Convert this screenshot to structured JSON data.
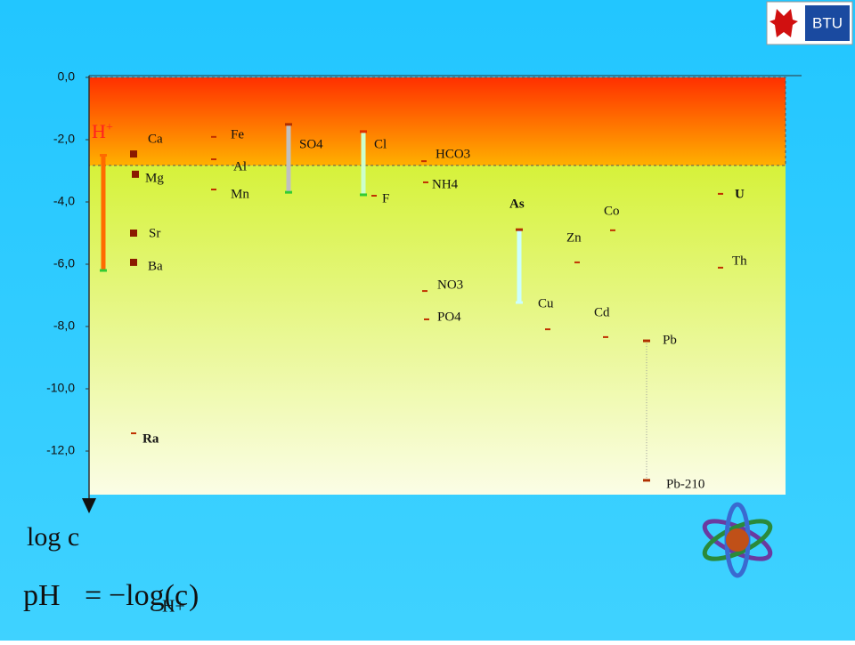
{
  "chart_data": {
    "type": "ion-range",
    "y_axis_label": "log c",
    "ylim": [
      0,
      -13.4
    ],
    "yticks": [
      {
        "value": 0,
        "label": "0,0"
      },
      {
        "value": -2,
        "label": "-2,0"
      },
      {
        "value": -4,
        "label": "-4,0"
      },
      {
        "value": -6,
        "label": "-6,0"
      },
      {
        "value": -8,
        "label": "-8,0"
      },
      {
        "value": -10,
        "label": "-10,0"
      },
      {
        "value": -12,
        "label": "-12,0"
      }
    ],
    "acid_limit": -2.83,
    "ions": [
      {
        "labels": [
          "H",
          "+"
        ],
        "values": [
          -2.5,
          -6.2
        ],
        "bar_color": "#ff6a00",
        "end_colors": [
          "#ff6a00",
          "#33cc33"
        ]
      },
      {
        "labels": [
          "Ca"
        ],
        "values": [
          -2.46
        ],
        "marker": "square"
      },
      {
        "labels": [
          "Mg"
        ],
        "values": [
          -3.11
        ],
        "marker": "square"
      },
      {
        "labels": [
          "Sr"
        ],
        "values": [
          -5.0
        ],
        "marker": "square"
      },
      {
        "labels": [
          "Ba"
        ],
        "values": [
          -5.94
        ],
        "marker": "square"
      },
      {
        "labels": [
          "Ra"
        ],
        "values": [
          -11.43
        ],
        "bold": true
      },
      {
        "labels": [
          "Fe"
        ],
        "values": [
          -1.91
        ]
      },
      {
        "labels": [
          "Al"
        ],
        "values": [
          -2.63
        ]
      },
      {
        "labels": [
          "Mn"
        ],
        "values": [
          -3.6
        ]
      },
      {
        "labels": [
          "SO4"
        ],
        "values": [
          -1.51,
          -3.69
        ],
        "bar_color": "#c0c0c0",
        "end_colors": [
          "#b03000",
          "#33cc33"
        ]
      },
      {
        "labels": [
          "Cl"
        ],
        "values": [
          -1.74,
          -3.77
        ],
        "bar_color": "#ccffcc",
        "end_colors": [
          "#e03000",
          "#33cc33"
        ]
      },
      {
        "labels": [
          "F"
        ],
        "values": [
          -3.8
        ]
      },
      {
        "labels": [
          "HCO3"
        ],
        "values": [
          -2.69
        ]
      },
      {
        "labels": [
          "NH4"
        ],
        "values": [
          -3.37
        ]
      },
      {
        "labels": [
          "NO3"
        ],
        "values": [
          -6.86
        ]
      },
      {
        "labels": [
          "PO4"
        ],
        "values": [
          -7.77
        ]
      },
      {
        "labels": [
          "As"
        ],
        "values": [
          -4.89,
          -7.23
        ],
        "bar_color": "#ccffff",
        "end_colors": [
          "#b03000",
          "#ccffff"
        ],
        "bold": true
      },
      {
        "labels": [
          "Cu"
        ],
        "values": [
          -8.09
        ]
      },
      {
        "labels": [
          "Zn"
        ],
        "values": [
          -5.94
        ]
      },
      {
        "labels": [
          "Co"
        ],
        "values": [
          -4.91
        ]
      },
      {
        "labels": [
          "Cd"
        ],
        "values": [
          -8.34
        ]
      },
      {
        "labels": [
          "Pb",
          "Pb-210"
        ],
        "values": [
          -8.46,
          -12.94
        ],
        "bar_color": "#999999",
        "dotted": true,
        "end_colors": [
          "#b03000",
          "#b03000"
        ]
      },
      {
        "labels": [
          "U"
        ],
        "values": [
          -3.74
        ],
        "bold": true
      },
      {
        "labels": [
          "Th"
        ],
        "values": [
          -6.11
        ]
      }
    ]
  },
  "formula": {
    "lhs": "pH",
    "eq": "=",
    "rhs": "−log(c",
    "sub": "H+",
    "close": ")"
  },
  "logo": {
    "text": "BTU"
  }
}
